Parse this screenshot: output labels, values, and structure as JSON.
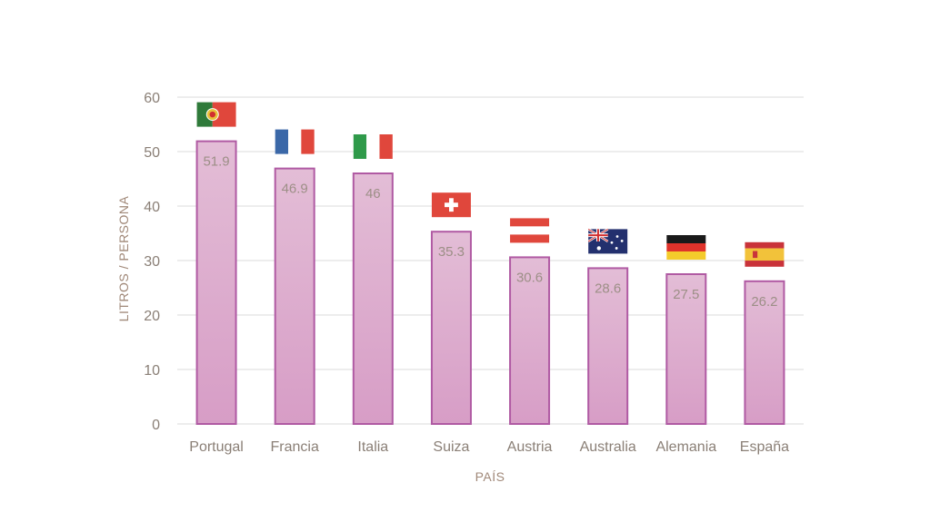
{
  "chart_data": {
    "type": "bar",
    "title": "",
    "xlabel": "PAÍS",
    "ylabel": "LITROS / PERSONA",
    "ylim": [
      0,
      60
    ],
    "yticks": [
      0,
      10,
      20,
      30,
      40,
      50,
      60
    ],
    "grid": true,
    "legend": "none",
    "categories": [
      "Portugal",
      "Francia",
      "Italia",
      "Suiza",
      "Austria",
      "Australia",
      "Alemania",
      "España"
    ],
    "values": [
      51.9,
      46.9,
      46,
      35.3,
      30.6,
      28.6,
      27.5,
      26.2
    ],
    "data_labels": [
      "51.9",
      "46.9",
      "46",
      "35.3",
      "30.6",
      "28.6",
      "27.5",
      "26.2"
    ],
    "flags": [
      "portugal-flag",
      "france-flag",
      "italy-flag",
      "switzerland-flag",
      "austria-flag",
      "australia-flag",
      "germany-flag",
      "spain-flag"
    ],
    "colors": {
      "bar_top": "#e3bdd6",
      "bar_bottom": "#d79dc6",
      "bar_border": "#b05aa3",
      "grid": "#e2e2e2",
      "text": "#8a7f76"
    }
  }
}
